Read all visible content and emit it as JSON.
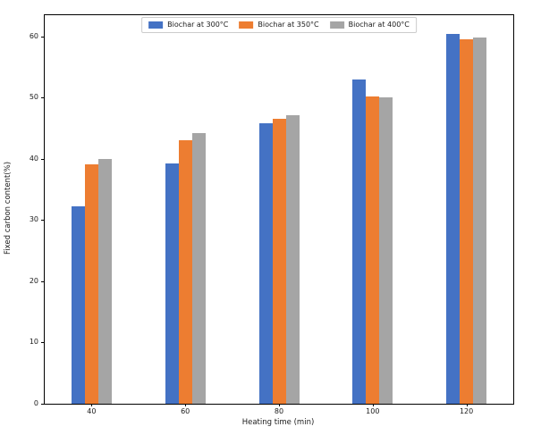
{
  "figure": {
    "background": "#ffffff",
    "text_color": "#1a1a1a",
    "spine_color": "#000000"
  },
  "chart_data": {
    "type": "bar",
    "title": "",
    "xlabel": "Heating time (min)",
    "ylabel": "Fixed carbon content(%)",
    "categories": [
      "40",
      "60",
      "80",
      "100",
      "120"
    ],
    "series": [
      {
        "name": "Biochar at 300°C",
        "color": "#4472C4",
        "values": [
          32.2,
          39.2,
          45.8,
          53.0,
          60.5
        ]
      },
      {
        "name": "Biochar at 350°C",
        "color": "#ED7D31",
        "values": [
          39.1,
          43.1,
          46.6,
          50.2,
          59.5
        ]
      },
      {
        "name": "Biochar at 400°C",
        "color": "#A5A5A5",
        "values": [
          40.0,
          44.3,
          47.2,
          50.1,
          59.8
        ]
      }
    ],
    "ylim": [
      0,
      63.5
    ],
    "yticks": [
      0,
      10,
      20,
      30,
      40,
      50,
      60
    ],
    "grid": false,
    "legend_position": "upper center"
  }
}
